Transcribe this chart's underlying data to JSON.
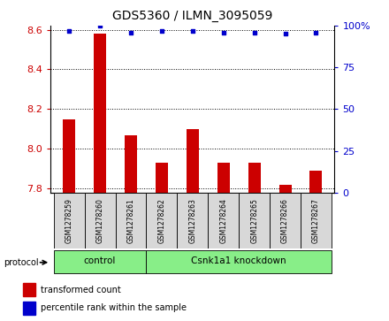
{
  "title": "GDS5360 / ILMN_3095059",
  "samples": [
    "GSM1278259",
    "GSM1278260",
    "GSM1278261",
    "GSM1278262",
    "GSM1278263",
    "GSM1278264",
    "GSM1278265",
    "GSM1278266",
    "GSM1278267"
  ],
  "bar_values": [
    8.15,
    8.58,
    8.07,
    7.93,
    8.1,
    7.93,
    7.93,
    7.82,
    7.89
  ],
  "percentile_values": [
    97,
    100,
    96,
    97,
    97,
    96,
    96,
    95,
    96
  ],
  "ylim_left": [
    7.78,
    8.62
  ],
  "ylim_right": [
    0,
    100
  ],
  "yticks_left": [
    7.8,
    8.0,
    8.2,
    8.4,
    8.6
  ],
  "yticks_right": [
    0,
    25,
    50,
    75,
    100
  ],
  "bar_color": "#cc0000",
  "dot_color": "#0000cc",
  "left_tick_color": "#cc0000",
  "right_tick_color": "#0000cc",
  "grid_color": "#000000",
  "n_control": 3,
  "control_label": "control",
  "knockdown_label": "Csnk1a1 knockdown",
  "protocol_label": "protocol",
  "legend_bar_label": "transformed count",
  "legend_dot_label": "percentile rank within the sample",
  "group_color": "#88ee88",
  "bg_color": "#d8d8d8",
  "bar_width": 0.4
}
